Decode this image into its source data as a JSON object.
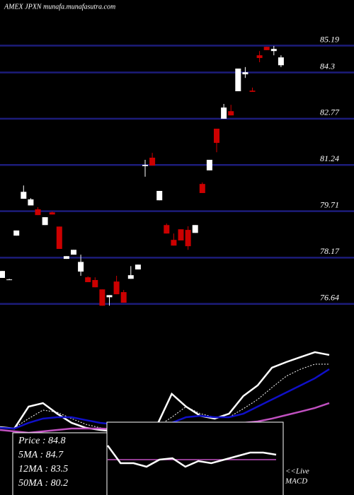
{
  "chart_data": [
    {
      "type": "candlestick",
      "title": "AMEX JPXN munafa.munafasutra.com",
      "open": [
        77.5,
        77.45,
        78.9,
        80.12,
        79.9,
        79.77,
        79.25,
        79.67,
        79.2,
        78.13,
        78.27,
        77.71,
        77.52,
        77.43,
        77.12,
        76.86,
        77.38,
        77.03,
        77.47,
        77.78,
        81.2,
        81.48,
        80.07,
        79.25,
        78.76,
        79.11,
        79.09,
        78.99,
        80.61,
        81.06,
        82.44,
        82.77,
        83.02,
        83.68,
        84.24,
        83.7,
        84.87,
        85.15,
        85.01,
        84.54
      ],
      "high": [
        77.73,
        77.47,
        79.07,
        80.56,
        80.14,
        79.84,
        79.51,
        79.7,
        79.2,
        78.22,
        78.43,
        78.27,
        77.55,
        77.52,
        77.12,
        76.93,
        77.57,
        77.1,
        77.89,
        77.94,
        81.41,
        81.64,
        80.38,
        79.3,
        78.97,
        79.11,
        79.21,
        79.25,
        80.66,
        81.41,
        82.44,
        83.26,
        83.23,
        84.43,
        84.48,
        83.8,
        85.01,
        85.15,
        85.18,
        84.87
      ],
      "low": [
        77.5,
        77.43,
        78.9,
        80.12,
        79.9,
        79.58,
        79.25,
        79.6,
        78.46,
        78.13,
        78.27,
        77.57,
        77.36,
        77.19,
        76.58,
        76.58,
        76.96,
        76.68,
        77.47,
        77.78,
        80.85,
        81.22,
        80.07,
        78.97,
        78.57,
        78.74,
        78.43,
        78.99,
        80.31,
        81.06,
        81.66,
        82.77,
        82.88,
        83.68,
        84.12,
        83.66,
        84.64,
        85.04,
        84.87,
        84.48
      ],
      "close": [
        77.73,
        77.45,
        79.07,
        80.35,
        80.1,
        79.58,
        79.51,
        79.6,
        78.46,
        78.22,
        78.43,
        78.03,
        77.36,
        77.19,
        76.58,
        76.93,
        76.96,
        76.68,
        77.59,
        77.94,
        81.24,
        81.22,
        80.38,
        78.97,
        78.57,
        78.74,
        78.55,
        79.25,
        80.31,
        81.41,
        81.97,
        83.14,
        82.88,
        84.43,
        84.31,
        83.66,
        84.78,
        85.04,
        85.08,
        84.8
      ],
      "up_color": "#ffffff",
      "down_color": "#cc0000",
      "grid": true,
      "grid_color": "#1c1c7a",
      "ylim": [
        76.4,
        86.7
      ],
      "yticks": [
        85.19,
        84.3,
        82.77,
        81.24,
        79.71,
        78.17,
        76.64
      ],
      "annotations": [
        "Price : 84.8",
        "5MA : 84.7",
        "12MA : 83.5",
        "50MA : 80.2"
      ]
    },
    {
      "type": "line",
      "x": [
        0,
        1,
        2,
        3,
        4,
        5,
        6,
        7,
        8,
        9,
        10,
        11,
        12,
        13,
        14,
        15,
        16,
        17,
        18,
        19,
        20,
        21,
        22,
        23
      ],
      "xlim": [
        0,
        23
      ],
      "ylim": [
        0,
        100
      ],
      "series": [
        {
          "color": "#ffffff",
          "dash": false,
          "values": [
            10.7,
            9.3,
            30,
            33.3,
            23.3,
            14.7,
            10,
            8,
            6.7,
            9.3,
            12,
            13.3,
            42,
            30,
            21.3,
            18.7,
            23.3,
            40,
            50,
            66.7,
            72,
            76.7,
            81.3,
            78.7
          ]
        },
        {
          "color": "#ffffff",
          "dash": true,
          "values": [
            10,
            10,
            18.7,
            26.7,
            24.7,
            18.7,
            13.3,
            10,
            8,
            8,
            10,
            11.3,
            20,
            30,
            23.3,
            20,
            20,
            28,
            36.7,
            48,
            58.7,
            65.3,
            70,
            70
          ]
        },
        {
          "color": "#1010c8",
          "dash": false,
          "values": [
            10,
            9.3,
            14.7,
            18.7,
            20,
            20,
            17.3,
            14.7,
            13.3,
            12,
            11.3,
            11.3,
            14.7,
            20,
            21.3,
            20,
            20,
            23.3,
            30,
            36.7,
            43.3,
            50,
            56.7,
            65.3
          ]
        },
        {
          "color": "#c050c0",
          "dash": false,
          "values": [
            8,
            6.7,
            5.3,
            6.7,
            8,
            9.3,
            9.3,
            9.3,
            8.7,
            8,
            8,
            8.7,
            9.3,
            10.7,
            12,
            12.7,
            13.3,
            14.7,
            16,
            18.7,
            22,
            25.3,
            28.7,
            33.3
          ]
        }
      ]
    },
    {
      "type": "line",
      "x": [
        0,
        1,
        2,
        3,
        4,
        5,
        6,
        7,
        8,
        9,
        10,
        11,
        12,
        13
      ],
      "xlim": [
        0,
        13
      ],
      "ylim": [
        -20,
        20
      ],
      "baseline_color": "#c050c0",
      "series": [
        {
          "color": "#ffffff",
          "dash": false,
          "values": [
            8,
            -2,
            -2,
            -4,
            0,
            0.8,
            -4,
            -0.8,
            -2,
            0,
            2,
            4,
            4,
            2.8
          ]
        }
      ],
      "annotations": [
        "<<Live",
        "MACD"
      ]
    }
  ]
}
